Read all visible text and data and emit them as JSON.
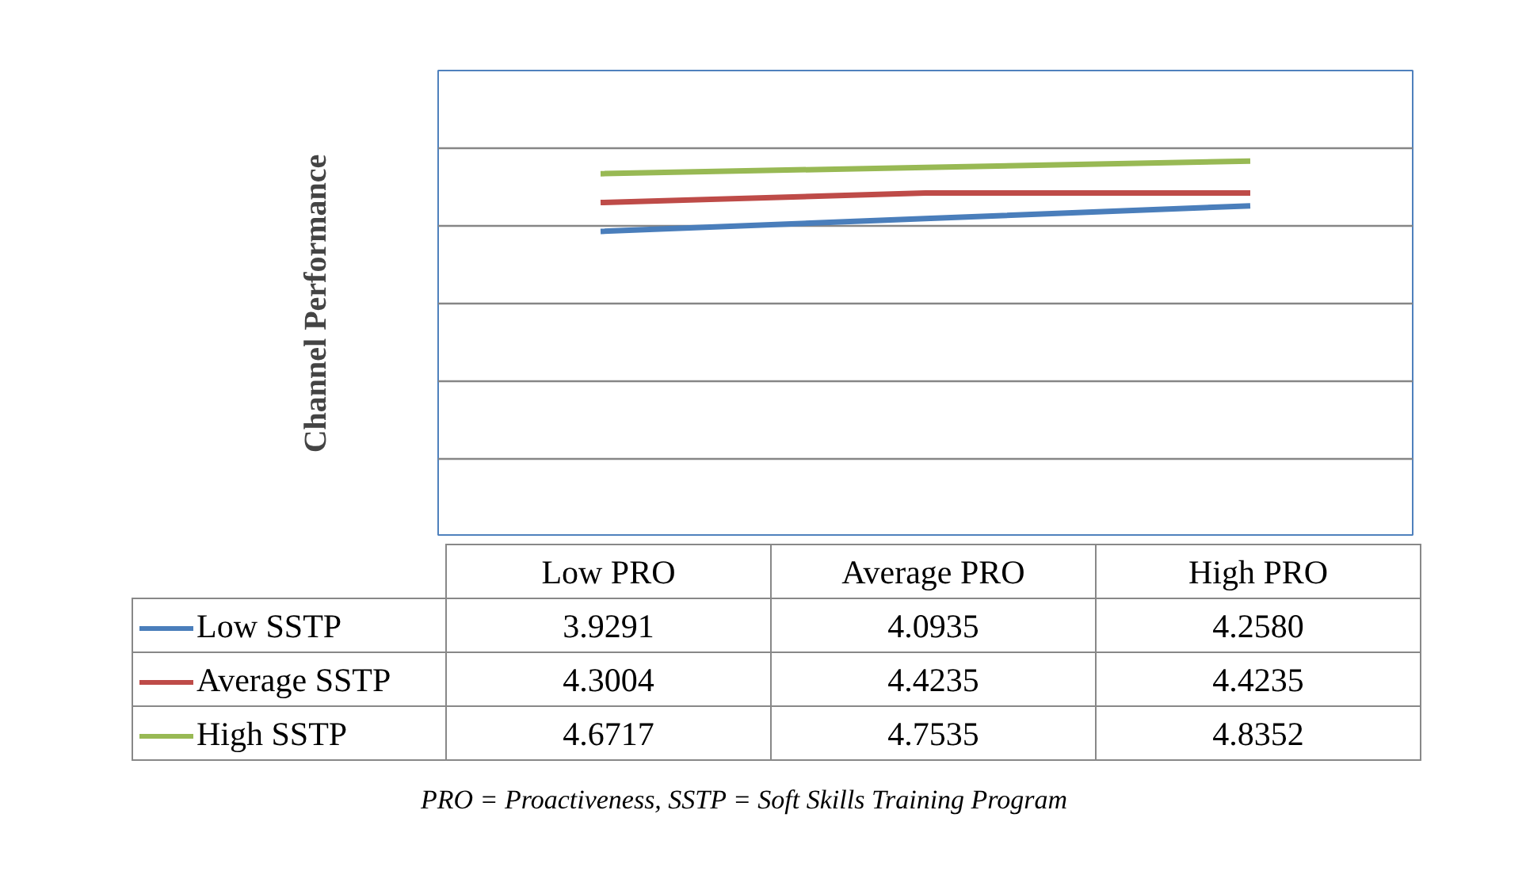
{
  "chart_data": {
    "type": "line",
    "ylabel": "Channel Performance",
    "categories": [
      "Low PRO",
      "Average PRO",
      "High PRO"
    ],
    "ylim": [
      0,
      6
    ],
    "yticks": [
      {
        "value": 1,
        "label": null
      },
      {
        "value": 2,
        "label": null
      },
      {
        "value": 3,
        "label": null
      },
      {
        "value": 4,
        "label": null
      },
      {
        "value": 5,
        "label": null
      }
    ],
    "tick_labels": "x",
    "grid": "y",
    "legend": "bottom",
    "marker": "none",
    "line_style": "solid",
    "series": [
      {
        "name": "Low SSTP",
        "color": "#4a7ebb",
        "values": [
          3.9291,
          4.0935,
          4.258
        ],
        "value_labels": [
          "3.9291",
          "4.0935",
          "4.2580"
        ]
      },
      {
        "name": "Average SSTP",
        "color": "#be4b48",
        "values": [
          4.3004,
          4.4235,
          4.4235
        ],
        "value_labels": [
          "4.3004",
          "4.4235",
          "4.4235"
        ]
      },
      {
        "name": "High SSTP",
        "color": "#98b954",
        "values": [
          4.6717,
          4.7535,
          4.8352
        ],
        "value_labels": [
          "4.6717",
          "4.7535",
          "4.8352"
        ]
      }
    ],
    "annotations": [
      "PRO = Proactiveness, SSTP = Soft Skills Training Program"
    ]
  }
}
